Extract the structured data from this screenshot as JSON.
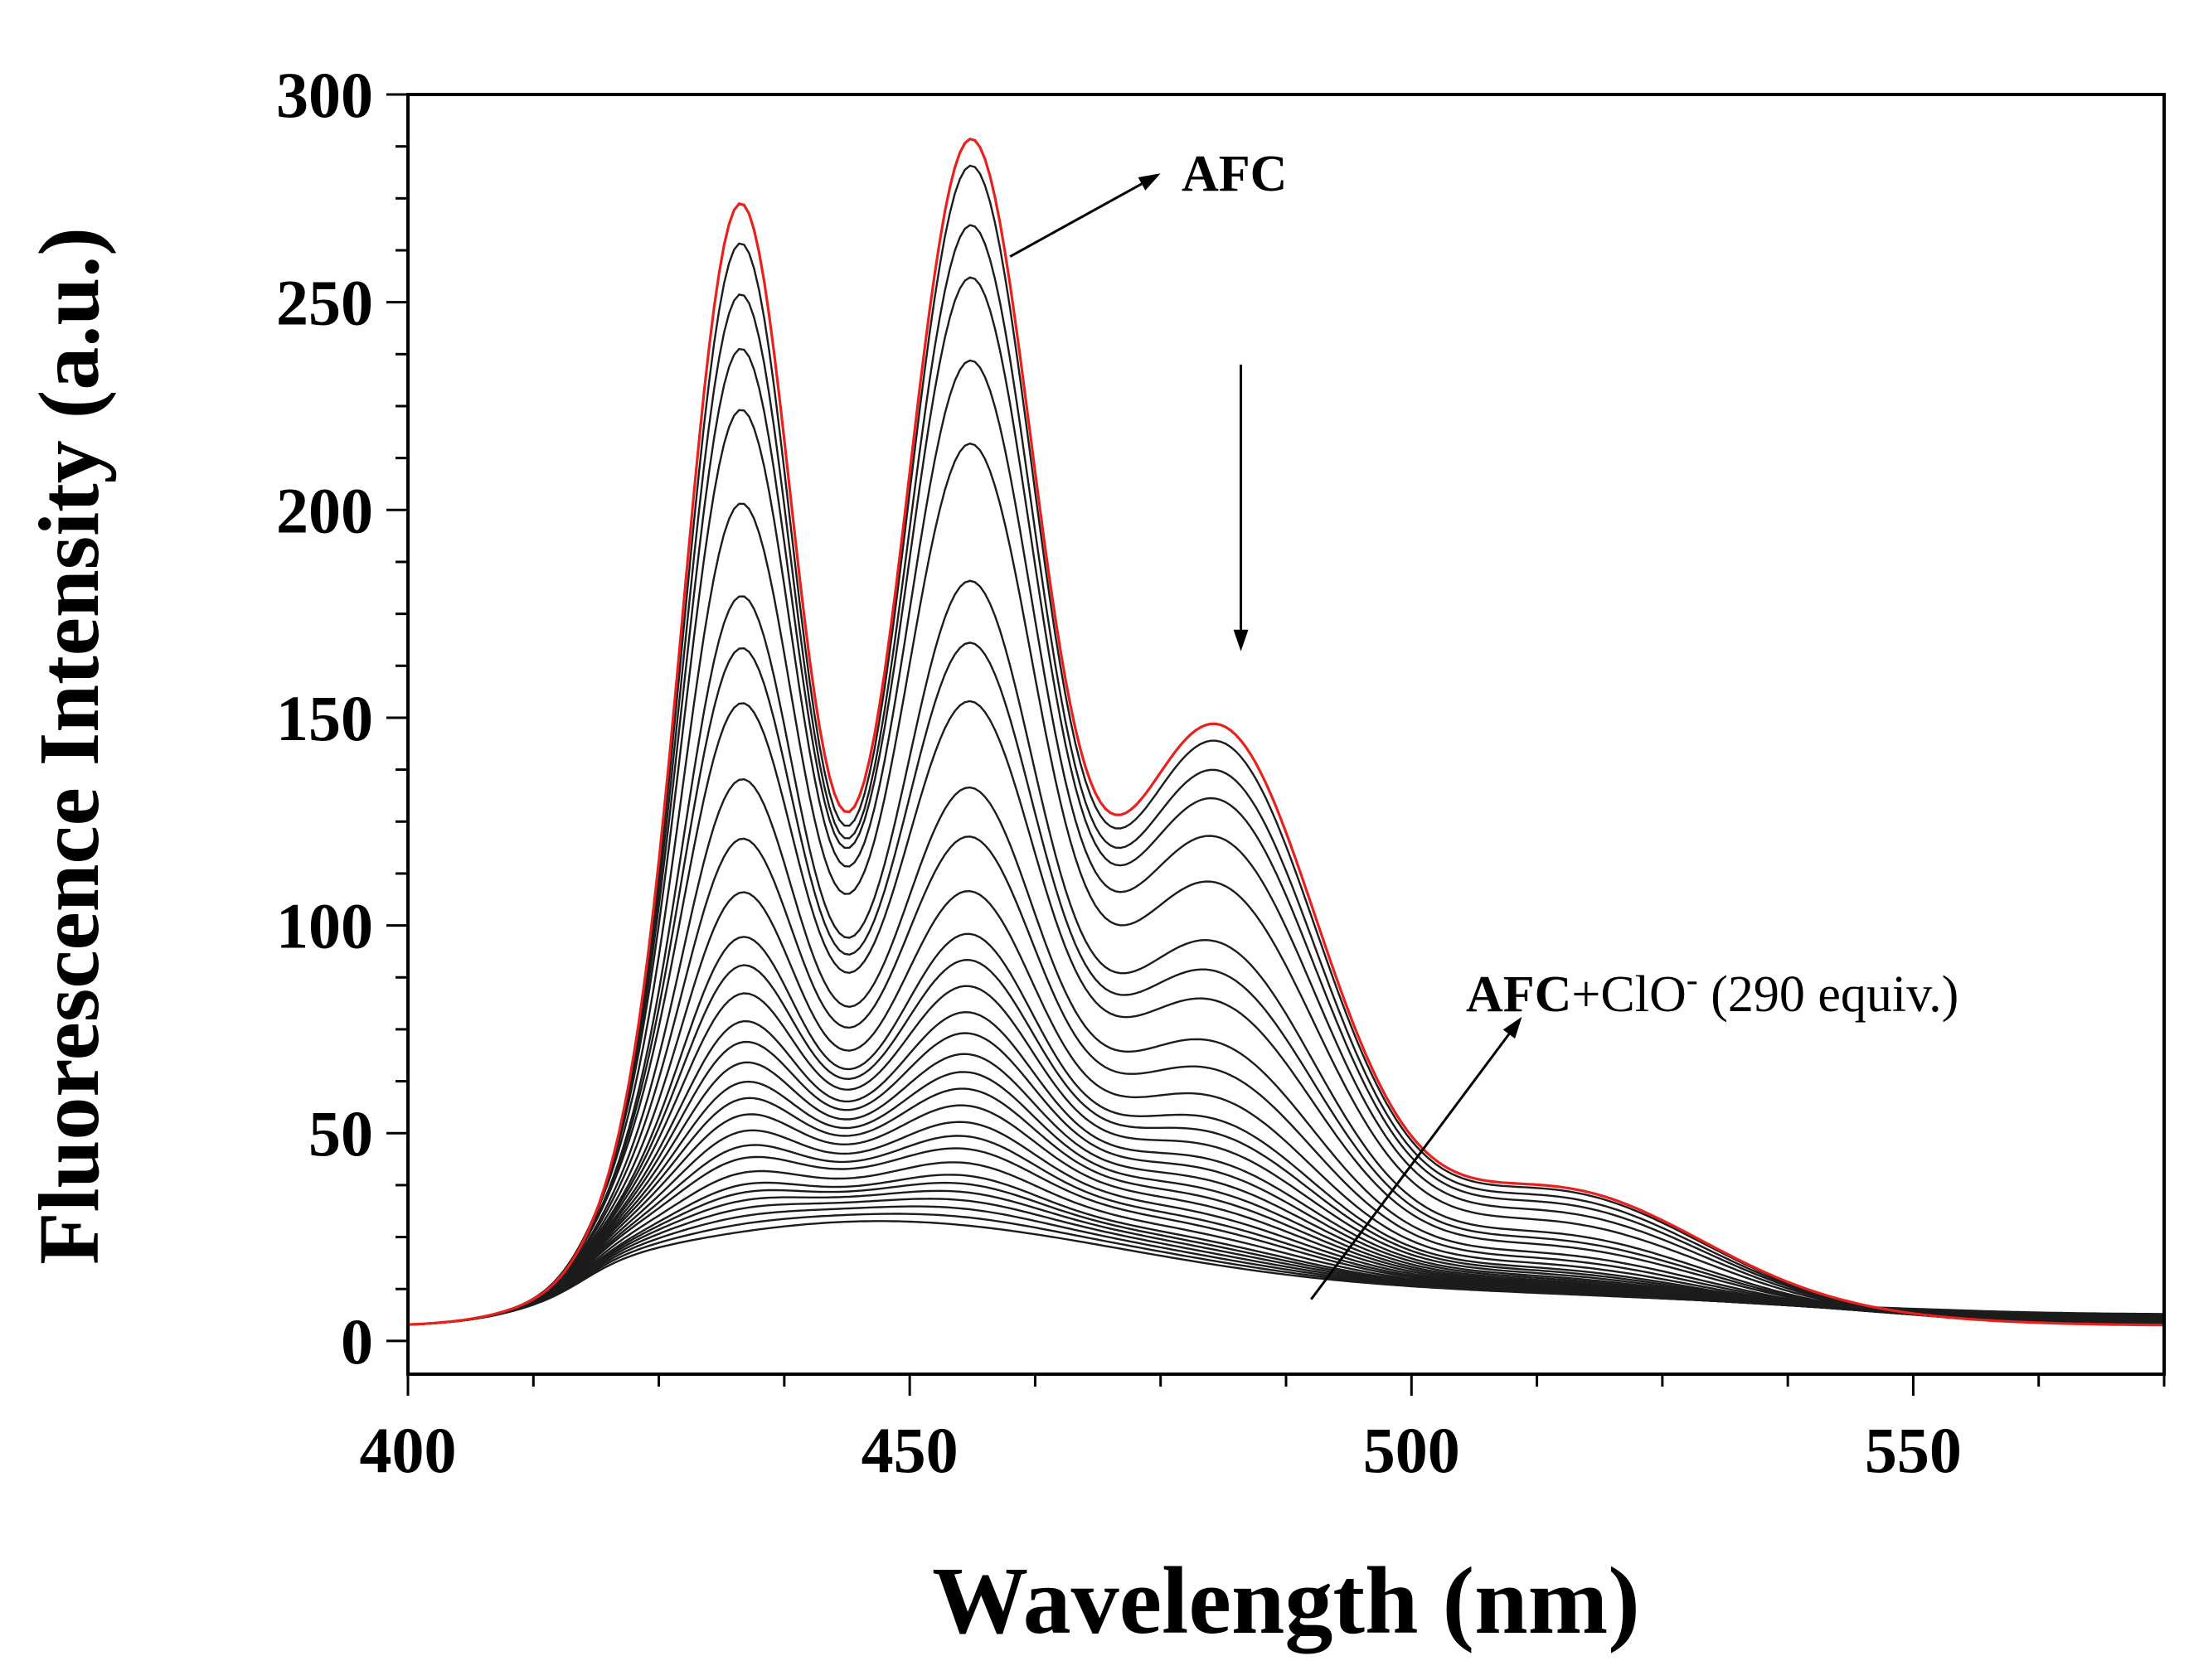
{
  "chart_data": {
    "type": "line",
    "title": "",
    "xlabel": "Wavelength (nm)",
    "ylabel": "Fluorescence Intensity (a.u.)",
    "xlim": [
      400,
      575
    ],
    "ylim": [
      -8,
      300
    ],
    "xticks": [
      400,
      450,
      500,
      550
    ],
    "yticks": [
      0,
      50,
      100,
      150,
      200,
      250,
      300
    ],
    "grid": false,
    "legend": "none",
    "colors": {
      "initial": "#e8211c",
      "titration": "#1c1c1c",
      "axis": "#000000"
    },
    "peak_wavelengths": [
      433,
      456
    ],
    "initial_series": {
      "name": "AFC",
      "color": "#e8211c",
      "peak1": 265,
      "peak2": 273
    },
    "series": [
      {
        "name": "1",
        "peak1": 255,
        "peak2": 267
      },
      {
        "name": "2",
        "peak1": 243,
        "peak2": 253
      },
      {
        "name": "3",
        "peak1": 230,
        "peak2": 241
      },
      {
        "name": "4",
        "peak1": 216,
        "peak2": 221
      },
      {
        "name": "5",
        "peak1": 193,
        "peak2": 202
      },
      {
        "name": "6",
        "peak1": 172,
        "peak2": 168
      },
      {
        "name": "7",
        "peak1": 160,
        "peak2": 153
      },
      {
        "name": "8",
        "peak1": 147,
        "peak2": 139
      },
      {
        "name": "9",
        "peak1": 129,
        "peak2": 118
      },
      {
        "name": "10",
        "peak1": 114,
        "peak2": 107
      },
      {
        "name": "11",
        "peak1": 101,
        "peak2": 94
      },
      {
        "name": "12",
        "peak1": 90,
        "peak2": 84
      },
      {
        "name": "13",
        "peak1": 83,
        "peak2": 78
      },
      {
        "name": "14",
        "peak1": 76,
        "peak2": 72
      },
      {
        "name": "15",
        "peak1": 69,
        "peak2": 66
      },
      {
        "name": "16",
        "peak1": 64,
        "peak2": 61
      },
      {
        "name": "17",
        "peak1": 59,
        "peak2": 56
      },
      {
        "name": "18",
        "peak1": 54,
        "peak2": 52
      },
      {
        "name": "19",
        "peak1": 50,
        "peak2": 48
      },
      {
        "name": "20",
        "peak1": 46,
        "peak2": 44
      },
      {
        "name": "21",
        "peak1": 42,
        "peak2": 40
      },
      {
        "name": "22",
        "peak1": 38,
        "peak2": 37
      },
      {
        "name": "23",
        "peak1": 35,
        "peak2": 34
      },
      {
        "name": "24",
        "peak1": 31,
        "peak2": 31
      },
      {
        "name": "25",
        "peak1": 28,
        "peak2": 28
      },
      {
        "name": "26",
        "peak1": 26,
        "peak2": 26
      },
      {
        "name": "27",
        "peak1": 24,
        "peak2": 24
      },
      {
        "name": "28",
        "peak1": 22,
        "peak2": 22
      },
      {
        "name": "29",
        "peak1": 20,
        "peak2": 20
      },
      {
        "name": "30",
        "peak1": 18,
        "peak2": 18
      },
      {
        "name": "31",
        "peak1": 16,
        "peak2": 16
      }
    ],
    "annotations": [
      {
        "id": "afc",
        "text": "AFC",
        "arrow_from": {
          "x": 460,
          "y": 261
        },
        "arrow_to": {
          "x": 475,
          "y": 281
        }
      },
      {
        "id": "afc-clo",
        "text_bold": "AFC",
        "text_rest": "+ClO",
        "superscript": "-",
        "text_tail": " (290 equiv.)",
        "arrow_from": {
          "x": 490,
          "y": 10
        },
        "arrow_to": {
          "x": 511,
          "y": 78
        }
      },
      {
        "id": "trend",
        "text": "",
        "arrow_from": {
          "x": 483,
          "y": 235
        },
        "arrow_to": {
          "x": 483,
          "y": 166
        }
      }
    ]
  }
}
